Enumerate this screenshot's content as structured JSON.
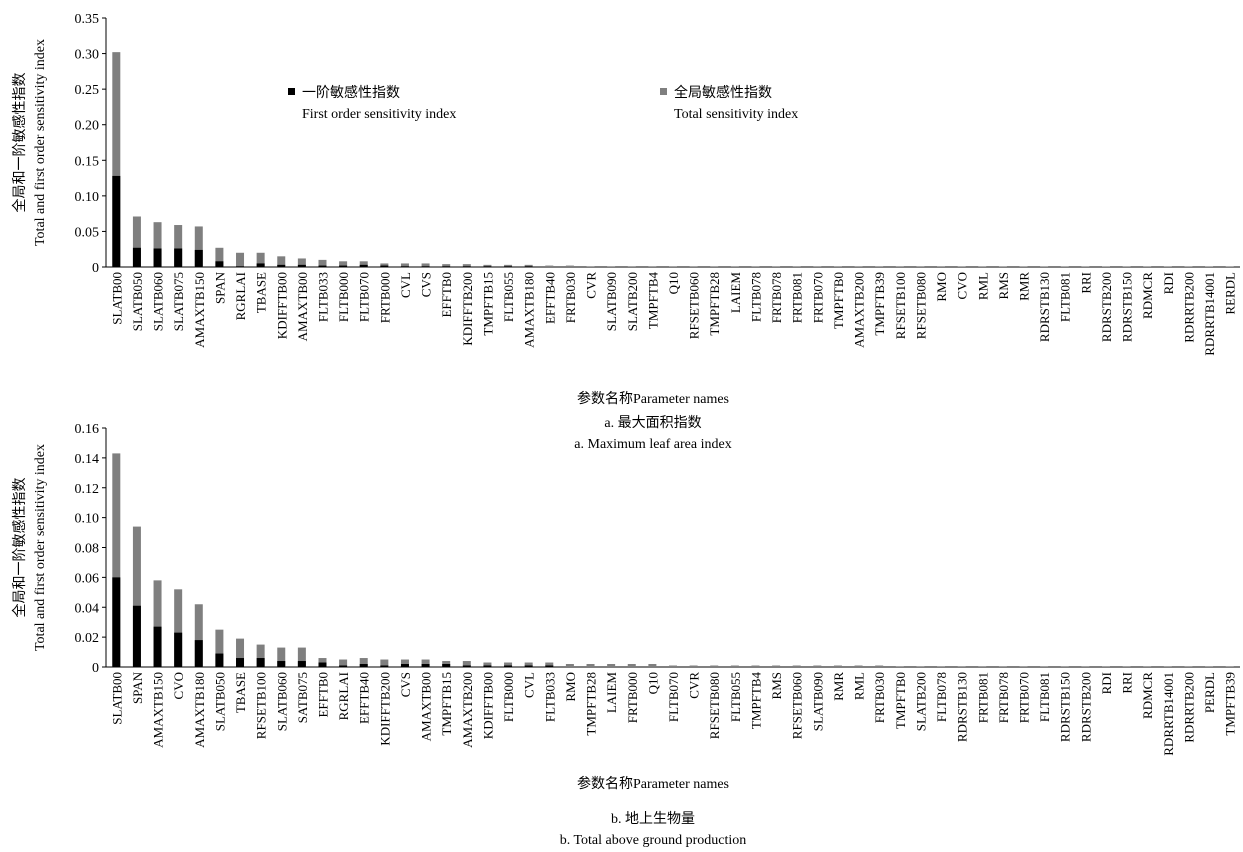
{
  "chart_data": [
    {
      "type": "bar",
      "ylabel": [
        "全局和一阶敏感性指数",
        "Total and first order sensitivity index"
      ],
      "xlabel": "参数名称Parameter names",
      "caption": [
        "a. 最大面积指数",
        "a. Maximum leaf area index"
      ],
      "legend": true,
      "categories": [
        "SLATB00",
        "SLATB050",
        "SLATB060",
        "SLATB075",
        "AMAXTB150",
        "SPAN",
        "RGRLAI",
        "TBASE",
        "KDIFFTB00",
        "AMAXTB00",
        "FLTB033",
        "FLTB000",
        "FLTB070",
        "FRTB000",
        "CVL",
        "CVS",
        "EFFTB0",
        "KDIFFTB200",
        "TMPFTB15",
        "FLTB055",
        "AMAXTB180",
        "EFFTB40",
        "FRTB030",
        "CVR",
        "SLATB090",
        "SLATB200",
        "TMPFTB4",
        "Q10",
        "RFSETB060",
        "TMPFTB28",
        "LAIEM",
        "FLTB078",
        "FRTB078",
        "FRTB081",
        "FRTB070",
        "TMPFTB0",
        "AMAXTB200",
        "TMPFTB39",
        "RFSETB100",
        "RFSETB080",
        "RMO",
        "CVO",
        "RML",
        "RMS",
        "RMR",
        "RDRSTB130",
        "FLTB081",
        "RRI",
        "RDRSTB200",
        "RDRSTB150",
        "RDMCR",
        "RDI",
        "RDRRTB200",
        "RDRRTB14001",
        "RERDL"
      ],
      "series": [
        {
          "name": [
            "全局敏感性指数",
            "Total sensitivity index"
          ],
          "color": "#7f7f7f",
          "values": [
            0.302,
            0.071,
            0.063,
            0.059,
            0.057,
            0.027,
            0.02,
            0.02,
            0.015,
            0.012,
            0.01,
            0.008,
            0.008,
            0.005,
            0.005,
            0.005,
            0.004,
            0.004,
            0.003,
            0.003,
            0.003,
            0.002,
            0.002,
            0.001,
            0.001,
            0.001,
            0.001,
            0.001,
            0.001,
            0.001,
            0.001,
            0.001,
            0.001,
            0.001,
            0.001,
            0.001,
            0.001,
            0.001,
            0.001,
            0.001,
            0.001,
            0.0005,
            0.0005,
            0.0005,
            0.0005,
            0.0005,
            0.0005,
            0.0005,
            0.0005,
            0.0005,
            0.0005,
            0.0005,
            0.0005,
            0.0005,
            0.0005
          ]
        },
        {
          "name": [
            "一阶敏感性指数",
            "First order sensitivity index"
          ],
          "color": "#000000",
          "values": [
            0.128,
            0.027,
            0.026,
            0.026,
            0.024,
            0.008,
            0.001,
            0.005,
            0.003,
            0.003,
            0.002,
            0.002,
            0.003,
            0.002,
            0.001,
            0.001,
            0.001,
            0.001,
            0.001,
            0.001,
            0.001,
            0,
            0,
            0,
            0,
            0,
            0,
            0,
            0,
            0,
            0,
            0,
            0,
            0,
            0,
            0,
            0,
            0,
            0,
            0,
            0,
            0,
            0,
            0,
            0,
            0,
            0,
            0,
            0,
            0,
            0,
            0,
            0,
            0,
            0
          ]
        }
      ],
      "ylim": [
        0,
        0.35
      ],
      "yticks": [
        0,
        0.05,
        {
          "value": 0.1,
          "label": "0.10"
        },
        0.15,
        {
          "value": 0.2,
          "label": "0.20"
        },
        0.25,
        {
          "value": 0.3,
          "label": "0.30"
        },
        0.35
      ]
    },
    {
      "type": "bar",
      "ylabel": [
        "全局和一阶敏感性指数",
        "Total and first order sensitivity index"
      ],
      "xlabel": "参数名称Parameter names",
      "caption": [
        "b. 地上生物量",
        "b. Total above ground production"
      ],
      "legend": false,
      "categories": [
        "SLATB00",
        "SPAN",
        "AMAXTB150",
        "CVO",
        "AMAXTB180",
        "SLATB050",
        "TBASE",
        "RFSETB100",
        "SLATB060",
        "SATB075",
        "EFFTB0",
        "RGRLAI",
        "EFFTB40",
        "KDIFFTB200",
        "CVS",
        "AMAXTB00",
        "TMPFTB15",
        "AMAXTB200",
        "KDIFFTB00",
        "FLTB000",
        "CVL",
        "FLTB033",
        "RMO",
        "TMPFTB28",
        "LAIEM",
        "FRTB000",
        "Q10",
        "FLTB070",
        "CVR",
        "RFSETB080",
        "FLTB055",
        "TMPFTB4",
        "RMS",
        "RFSETB060",
        "SLATB090",
        "RMR",
        "RML",
        "FRTB030",
        "TMPFTB0",
        "SLATB200",
        "FLTB078",
        "RDRSTB130",
        "FRTB081",
        "FRTB078",
        "FRTB070",
        "FLTB081",
        "RDRSTB150",
        "RDRSTB200",
        "RDI",
        "RRI",
        "RDMCR",
        "RDRRTB14001",
        "RDRRTB200",
        "PERDL",
        "TMPFTB39"
      ],
      "series": [
        {
          "name": [
            "全局敏感性指数",
            "Total sensitivity index"
          ],
          "color": "#7f7f7f",
          "values": [
            0.143,
            0.094,
            0.058,
            0.052,
            0.042,
            0.025,
            0.019,
            0.015,
            0.013,
            0.013,
            0.006,
            0.005,
            0.006,
            0.005,
            0.005,
            0.005,
            0.004,
            0.004,
            0.003,
            0.003,
            0.003,
            0.003,
            0.002,
            0.002,
            0.002,
            0.002,
            0.002,
            0.001,
            0.001,
            0.001,
            0.001,
            0.001,
            0.001,
            0.001,
            0.001,
            0.001,
            0.001,
            0.001,
            0.0005,
            0.0005,
            0.0005,
            0.0005,
            0.0005,
            0.0005,
            0.0005,
            0.0005,
            0.0005,
            0.0005,
            0.0005,
            0.0005,
            0.0005,
            0.0005,
            0.0005,
            0.0005,
            0.0005
          ]
        },
        {
          "name": [
            "一阶敏感性指数",
            "First order sensitivity index"
          ],
          "color": "#000000",
          "values": [
            0.06,
            0.041,
            0.027,
            0.023,
            0.018,
            0.009,
            0.006,
            0.006,
            0.004,
            0.004,
            0.003,
            0.001,
            0.002,
            0.001,
            0.002,
            0.002,
            0.002,
            0.001,
            0.001,
            0.001,
            0.001,
            0.001,
            0,
            0,
            0,
            0,
            0,
            0,
            0,
            0,
            0,
            0,
            0,
            0,
            0,
            0,
            0,
            0,
            0,
            0,
            0,
            0,
            0,
            0,
            0,
            0,
            0,
            0,
            0,
            0,
            0,
            0,
            0,
            0,
            0
          ]
        }
      ],
      "ylim": [
        0,
        0.16
      ],
      "yticks": [
        0,
        0.02,
        0.04,
        0.06,
        0.08,
        {
          "value": 0.1,
          "label": "0.10"
        },
        0.12,
        0.14,
        0.16
      ]
    }
  ]
}
